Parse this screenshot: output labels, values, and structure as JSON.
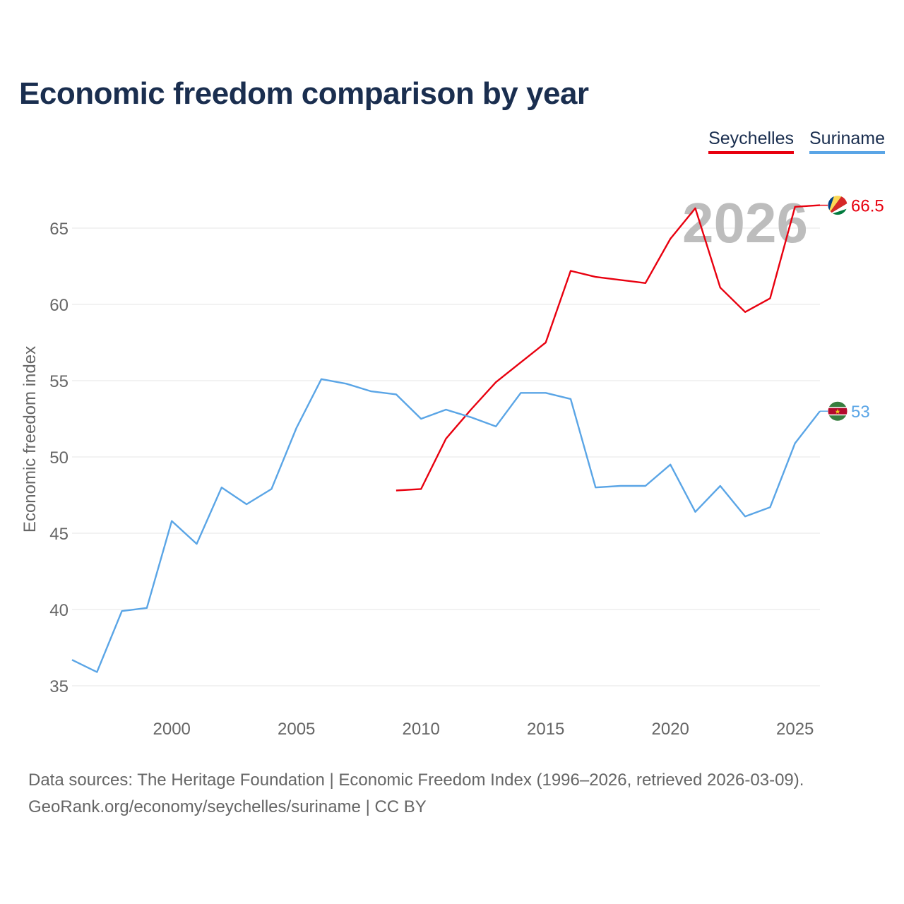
{
  "title": "Economic freedom comparison by year",
  "legend": {
    "series1": "Seychelles",
    "series2": "Suriname"
  },
  "watermark_year": "2026",
  "colors": {
    "seychelles": "#e8000f",
    "suriname": "#5aa5e6",
    "title": "#1a2e4f",
    "grid": "#e6e6e6",
    "axis_text": "#666666"
  },
  "chart_data": {
    "type": "line",
    "title": "Economic freedom comparison by year",
    "ylabel": "Economic freedom index",
    "xlabel": "",
    "xlim": [
      1996,
      2026
    ],
    "ylim": [
      33,
      68
    ],
    "xticks": [
      2000,
      2005,
      2010,
      2015,
      2020,
      2025
    ],
    "yticks": [
      35,
      40,
      45,
      50,
      55,
      60,
      65
    ],
    "series": [
      {
        "name": "Seychelles",
        "color": "#e8000f",
        "end_label": "66.5",
        "x": [
          2009,
          2010,
          2011,
          2012,
          2013,
          2014,
          2015,
          2016,
          2017,
          2018,
          2019,
          2020,
          2021,
          2022,
          2023,
          2024,
          2025,
          2026
        ],
        "values": [
          47.8,
          47.9,
          51.2,
          53.1,
          54.9,
          56.2,
          57.5,
          62.2,
          61.8,
          61.6,
          61.4,
          64.3,
          66.3,
          61.1,
          59.5,
          60.4,
          66.4,
          66.5
        ]
      },
      {
        "name": "Suriname",
        "color": "#5aa5e6",
        "end_label": "53",
        "x": [
          1996,
          1997,
          1998,
          1999,
          2000,
          2001,
          2002,
          2003,
          2004,
          2005,
          2006,
          2007,
          2008,
          2009,
          2010,
          2011,
          2012,
          2013,
          2014,
          2015,
          2016,
          2017,
          2018,
          2019,
          2020,
          2021,
          2022,
          2023,
          2024,
          2025,
          2026
        ],
        "values": [
          36.7,
          35.9,
          39.9,
          40.1,
          45.8,
          44.3,
          48.0,
          46.9,
          47.9,
          51.9,
          55.1,
          54.8,
          54.3,
          54.1,
          52.5,
          53.1,
          52.6,
          52.0,
          54.2,
          54.2,
          53.8,
          48.0,
          48.1,
          48.1,
          49.5,
          46.4,
          48.1,
          46.1,
          46.7,
          50.9,
          53.0
        ]
      }
    ]
  },
  "source": {
    "line1": "Data sources: The Heritage Foundation | Economic Freedom Index (1996–2026, retrieved 2026-03-09).",
    "line2": "GeoRank.org/economy/seychelles/suriname | CC BY"
  }
}
